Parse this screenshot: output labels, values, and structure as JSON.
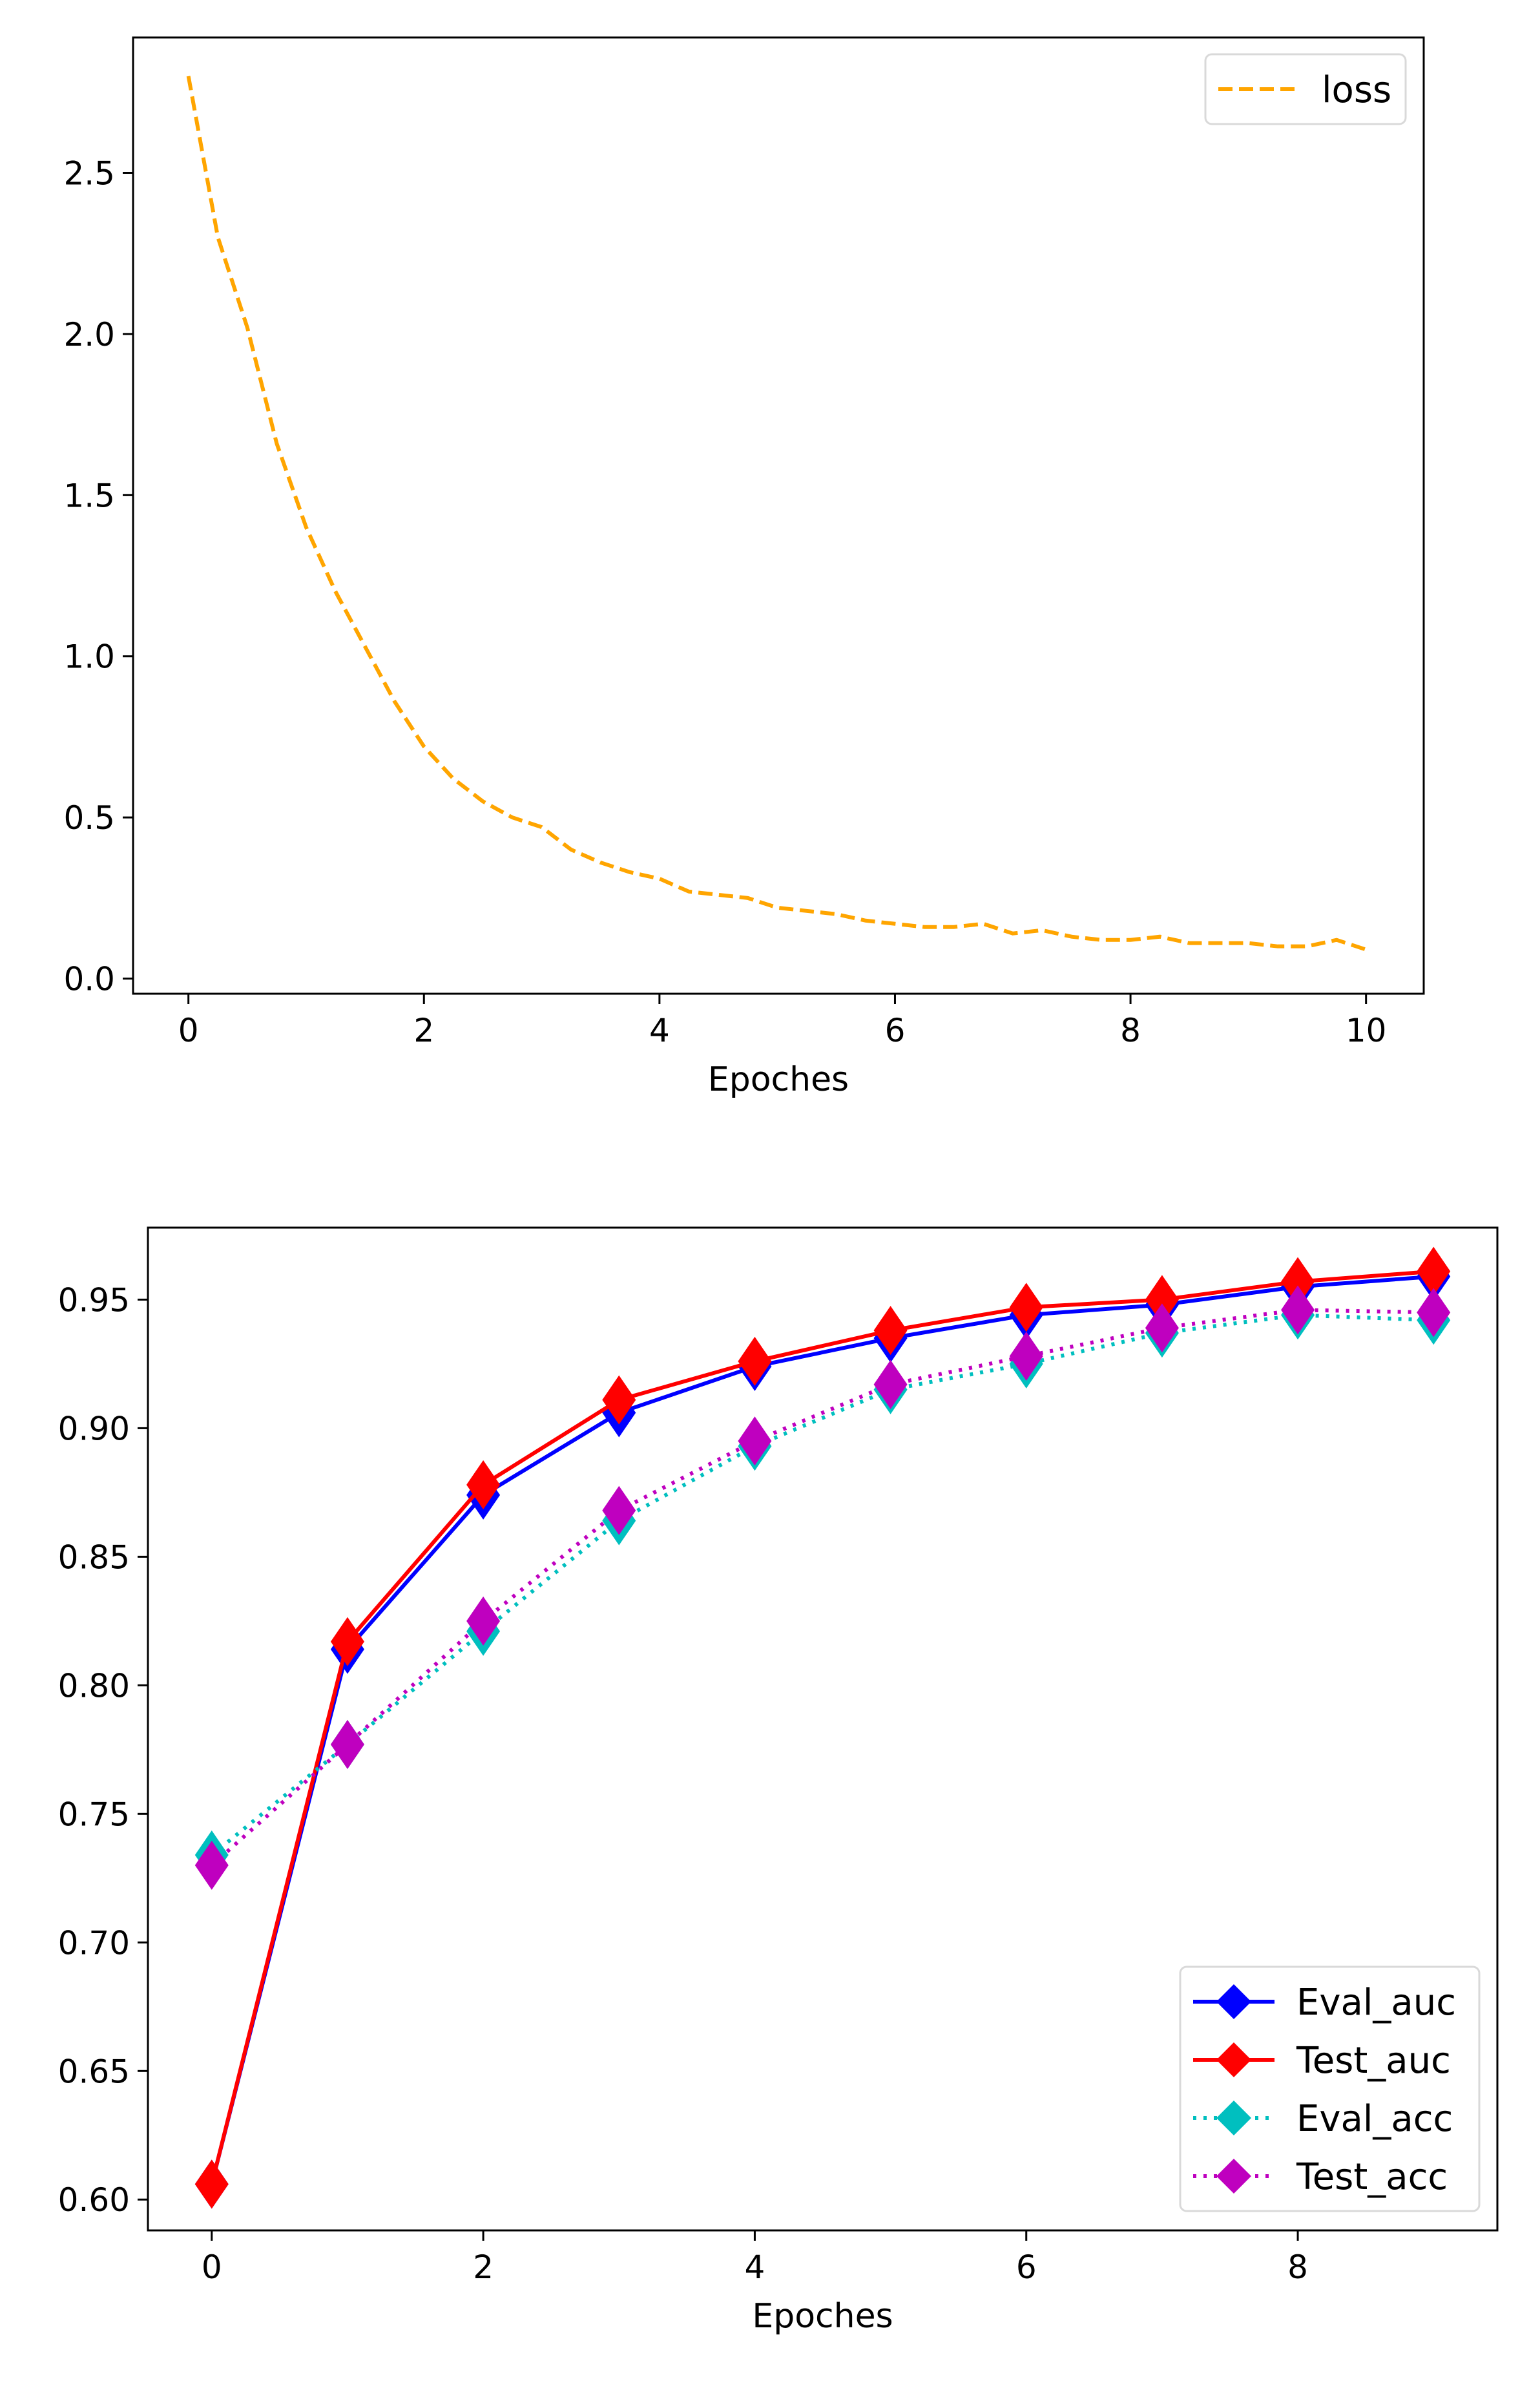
{
  "chart_data": [
    {
      "type": "line",
      "xlabel": "Epoches",
      "ylabel": "",
      "xlim": [
        -0.47,
        10.49
      ],
      "ylim": [
        -0.047,
        2.92
      ],
      "xticks": [
        0,
        2,
        4,
        6,
        8,
        10
      ],
      "xtick_labels": [
        "0",
        "2",
        "4",
        "6",
        "8",
        "10"
      ],
      "yticks": [
        0.0,
        0.5,
        1.0,
        1.5,
        2.0,
        2.5
      ],
      "ytick_labels": [
        "0.0",
        "0.5",
        "1.0",
        "1.5",
        "2.0",
        "2.5"
      ],
      "grid": false,
      "legend": "top-right",
      "series": [
        {
          "name": "loss",
          "color": "#ffa500",
          "style": "dashed",
          "x": [
            0,
            0.25,
            0.5,
            0.75,
            1.0,
            1.25,
            1.5,
            1.75,
            2.0,
            2.25,
            2.5,
            2.75,
            3.0,
            3.25,
            3.5,
            3.75,
            4.0,
            4.25,
            4.5,
            4.75,
            5.0,
            5.25,
            5.5,
            5.75,
            6.0,
            6.25,
            6.5,
            6.75,
            7.0,
            7.25,
            7.5,
            7.75,
            8.0,
            8.25,
            8.5,
            8.75,
            9.0,
            9.25,
            9.5,
            9.75,
            10.0
          ],
          "y": [
            2.8,
            2.3,
            2.02,
            1.66,
            1.4,
            1.2,
            1.03,
            0.86,
            0.72,
            0.62,
            0.55,
            0.5,
            0.47,
            0.4,
            0.36,
            0.33,
            0.31,
            0.27,
            0.26,
            0.25,
            0.22,
            0.21,
            0.2,
            0.18,
            0.17,
            0.16,
            0.16,
            0.17,
            0.14,
            0.15,
            0.13,
            0.12,
            0.12,
            0.13,
            0.11,
            0.11,
            0.11,
            0.1,
            0.1,
            0.12,
            0.09
          ]
        }
      ]
    },
    {
      "type": "line",
      "xlabel": "Epoches",
      "ylabel": "",
      "xlim": [
        -0.47,
        9.47
      ],
      "ylim": [
        0.588,
        0.978
      ],
      "xticks": [
        0,
        2,
        4,
        6,
        8
      ],
      "xtick_labels": [
        "0",
        "2",
        "4",
        "6",
        "8"
      ],
      "yticks": [
        0.6,
        0.65,
        0.7,
        0.75,
        0.8,
        0.85,
        0.9,
        0.95
      ],
      "ytick_labels": [
        "0.60",
        "0.65",
        "0.70",
        "0.75",
        "0.80",
        "0.85",
        "0.90",
        "0.95"
      ],
      "grid": false,
      "legend": "bottom-right",
      "x": [
        0,
        1,
        2,
        3,
        4,
        5,
        6,
        7,
        8,
        9
      ],
      "series": [
        {
          "name": "Eval_auc",
          "color": "#0000ff",
          "style": "solid",
          "marker": "diamond",
          "values": [
            0.606,
            0.814,
            0.874,
            0.906,
            0.924,
            0.935,
            0.944,
            0.948,
            0.955,
            0.959
          ]
        },
        {
          "name": "Test_auc",
          "color": "#ff0000",
          "style": "solid",
          "marker": "diamond",
          "values": [
            0.606,
            0.817,
            0.878,
            0.911,
            0.926,
            0.938,
            0.947,
            0.95,
            0.957,
            0.961
          ]
        },
        {
          "name": "Eval_acc",
          "color": "#00bfbf",
          "style": "dotted",
          "marker": "diamond",
          "values": [
            0.734,
            0.777,
            0.821,
            0.864,
            0.893,
            0.915,
            0.925,
            0.937,
            0.944,
            0.942
          ]
        },
        {
          "name": "Test_acc",
          "color": "#bf00bf",
          "style": "dotted",
          "marker": "diamond",
          "values": [
            0.73,
            0.777,
            0.825,
            0.868,
            0.895,
            0.917,
            0.928,
            0.939,
            0.946,
            0.945
          ]
        }
      ]
    }
  ]
}
